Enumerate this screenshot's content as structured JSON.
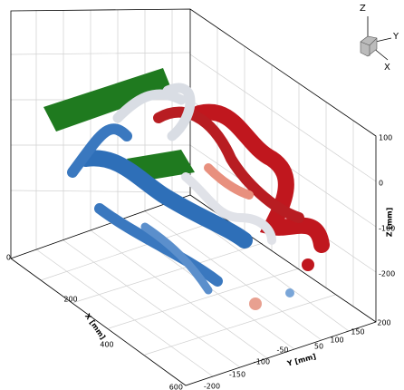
{
  "axes": {
    "x": {
      "title": "X [mm]",
      "ticks": [
        "0",
        "200",
        "400",
        "600"
      ]
    },
    "y": {
      "title": "Y [mm]",
      "ticks": [
        "-200",
        "-150",
        "-100",
        "-50",
        "50",
        "100",
        "150",
        "200"
      ]
    },
    "z": {
      "title": "Z [mm]",
      "ticks": [
        "100",
        "0",
        "-100",
        "-200"
      ]
    }
  },
  "triad": {
    "z": "Z",
    "y": "Y",
    "x": "X"
  }
}
